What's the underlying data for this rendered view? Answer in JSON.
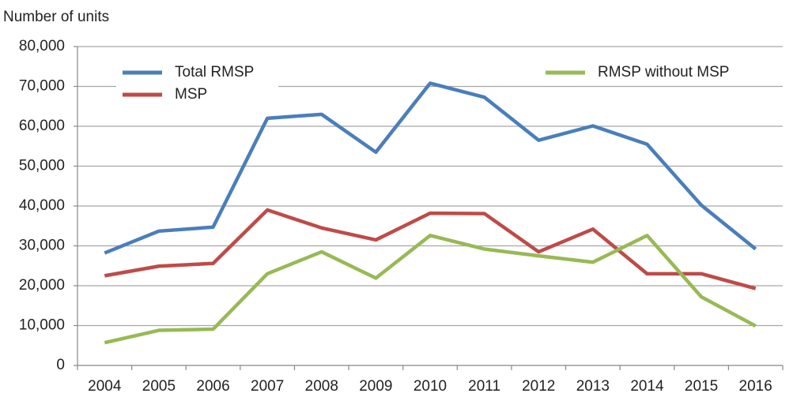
{
  "chart_data": {
    "type": "line",
    "y_label": "Number of units",
    "categories": [
      "2004",
      "2005",
      "2006",
      "2007",
      "2008",
      "2009",
      "2010",
      "2011",
      "2012",
      "2013",
      "2014",
      "2015",
      "2016"
    ],
    "series": [
      {
        "name": "Total RMSP",
        "color": "#4a7ebb",
        "values": [
          28200,
          33700,
          34700,
          62000,
          63000,
          53500,
          70800,
          67300,
          56500,
          60100,
          55500,
          40200,
          29200
        ]
      },
      {
        "name": "MSP",
        "color": "#be4b48",
        "values": [
          22500,
          24900,
          25600,
          39000,
          34500,
          31500,
          38200,
          38100,
          28500,
          34200,
          23000,
          23000,
          19300
        ]
      },
      {
        "name": "RMSP without MSP",
        "color": "#98b954",
        "values": [
          5700,
          8800,
          9100,
          23000,
          28500,
          21900,
          32600,
          29200,
          27500,
          25900,
          32600,
          17200,
          9900
        ]
      }
    ],
    "ylim": [
      0,
      80000
    ],
    "yticks": [
      0,
      {
        "value": 10000,
        "label": "10,000"
      },
      {
        "value": 20000,
        "label": "20,000"
      },
      {
        "value": 30000,
        "label": "30,000"
      },
      {
        "value": 40000,
        "label": "40,000"
      },
      {
        "value": 50000,
        "label": "50,000"
      },
      {
        "value": 60000,
        "label": "60,000"
      },
      {
        "value": 70000,
        "label": "70,000"
      },
      {
        "value": 80000,
        "label": "80,000"
      }
    ],
    "grid": true,
    "legend": "top"
  }
}
